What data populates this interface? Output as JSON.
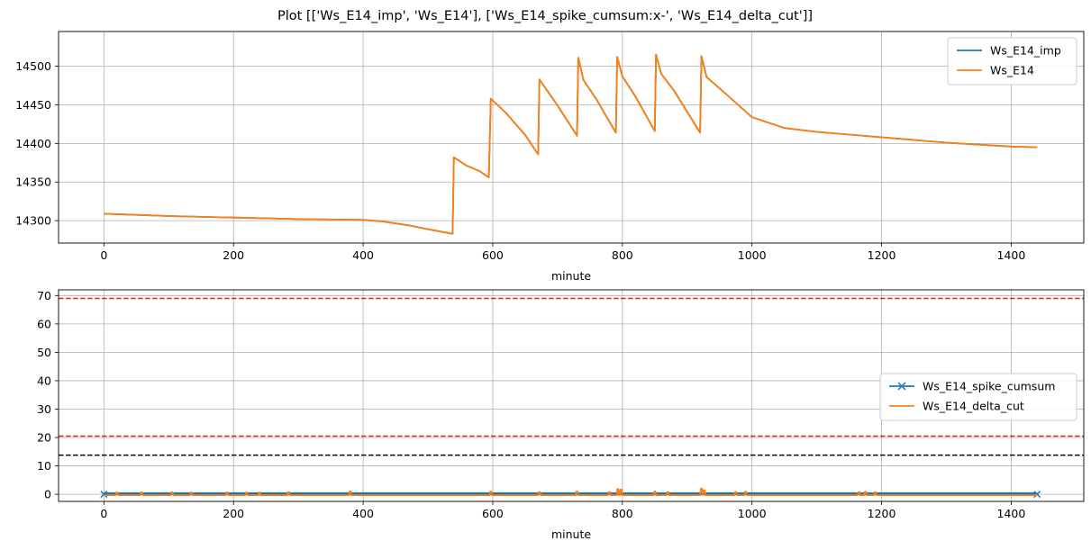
{
  "figure_title": "Plot [['Ws_E14_imp', 'Ws_E14'], ['Ws_E14_spike_cumsum:x-', 'Ws_E14_delta_cut']]",
  "chart_data": [
    {
      "type": "line",
      "title": "",
      "xlabel": "minute",
      "ylabel": "",
      "xlim": [
        -70,
        1512
      ],
      "ylim": [
        14271,
        14545
      ],
      "xticks": [
        0,
        200,
        400,
        600,
        800,
        1000,
        1200,
        1400
      ],
      "yticks": [
        14300,
        14350,
        14400,
        14450,
        14500
      ],
      "grid": true,
      "legend_position": "top-right",
      "series": [
        {
          "name": "Ws_E14_imp",
          "color": "#1f77b4",
          "points": [
            [
              0,
              14309
            ],
            [
              100,
              14306
            ],
            [
              200,
              14304
            ],
            [
              300,
              14302
            ],
            [
              400,
              14301
            ],
            [
              430,
              14299
            ],
            [
              470,
              14294
            ],
            [
              500,
              14289
            ],
            [
              538,
              14283
            ],
            [
              540,
              14382
            ],
            [
              560,
              14371
            ],
            [
              580,
              14364
            ],
            [
              594,
              14356
            ],
            [
              597,
              14458
            ],
            [
              620,
              14440
            ],
            [
              650,
              14411
            ],
            [
              670,
              14386
            ],
            [
              672,
              14483
            ],
            [
              700,
              14449
            ],
            [
              730,
              14410
            ],
            [
              732,
              14511
            ],
            [
              740,
              14482
            ],
            [
              760,
              14457
            ],
            [
              790,
              14414
            ],
            [
              792,
              14512
            ],
            [
              800,
              14487
            ],
            [
              820,
              14461
            ],
            [
              850,
              14416
            ],
            [
              852,
              14515
            ],
            [
              860,
              14490
            ],
            [
              880,
              14468
            ],
            [
              920,
              14414
            ],
            [
              922,
              14513
            ],
            [
              930,
              14486
            ],
            [
              960,
              14464
            ],
            [
              1000,
              14434
            ],
            [
              1050,
              14420
            ],
            [
              1100,
              14415
            ],
            [
              1200,
              14408
            ],
            [
              1300,
              14401
            ],
            [
              1400,
              14396
            ],
            [
              1440,
              14395
            ]
          ]
        },
        {
          "name": "Ws_E14",
          "color": "#ff7f0e",
          "points": [
            [
              0,
              14309
            ],
            [
              100,
              14306
            ],
            [
              200,
              14304
            ],
            [
              300,
              14302
            ],
            [
              400,
              14301
            ],
            [
              430,
              14299
            ],
            [
              470,
              14294
            ],
            [
              500,
              14289
            ],
            [
              538,
              14283
            ],
            [
              540,
              14382
            ],
            [
              560,
              14371
            ],
            [
              580,
              14364
            ],
            [
              594,
              14356
            ],
            [
              597,
              14458
            ],
            [
              620,
              14440
            ],
            [
              650,
              14411
            ],
            [
              670,
              14386
            ],
            [
              672,
              14483
            ],
            [
              700,
              14449
            ],
            [
              730,
              14410
            ],
            [
              732,
              14511
            ],
            [
              740,
              14482
            ],
            [
              760,
              14457
            ],
            [
              790,
              14414
            ],
            [
              792,
              14512
            ],
            [
              800,
              14487
            ],
            [
              820,
              14461
            ],
            [
              850,
              14416
            ],
            [
              852,
              14515
            ],
            [
              860,
              14490
            ],
            [
              880,
              14468
            ],
            [
              920,
              14414
            ],
            [
              922,
              14513
            ],
            [
              930,
              14486
            ],
            [
              960,
              14464
            ],
            [
              1000,
              14434
            ],
            [
              1050,
              14420
            ],
            [
              1100,
              14415
            ],
            [
              1200,
              14408
            ],
            [
              1300,
              14401
            ],
            [
              1400,
              14396
            ],
            [
              1440,
              14395
            ]
          ]
        }
      ]
    },
    {
      "type": "line",
      "title": "",
      "xlabel": "minute",
      "ylabel": "",
      "xlim": [
        -70,
        1512
      ],
      "ylim": [
        -2.5,
        72
      ],
      "xticks": [
        0,
        200,
        400,
        600,
        800,
        1000,
        1200,
        1400
      ],
      "yticks": [
        0,
        10,
        20,
        30,
        40,
        50,
        60,
        70
      ],
      "grid": true,
      "legend_position": "center-right",
      "hlines": [
        {
          "y": 69,
          "color": "#d62728",
          "style": "dashed"
        },
        {
          "y": 20.5,
          "color": "#d62728",
          "style": "dashed"
        },
        {
          "y": 13.8,
          "color": "#000000",
          "style": "dashed"
        }
      ],
      "series": [
        {
          "name": "Ws_E14_spike_cumsum",
          "color": "#1f77b4",
          "marker": "x",
          "x": [
            0,
            1440
          ],
          "values": [
            0,
            0
          ],
          "marker_density": "every minute",
          "band": [
            -0.3,
            0.7
          ]
        },
        {
          "name": "Ws_E14_delta_cut",
          "color": "#ff7f0e",
          "baseline": -0.3,
          "bumps": [
            [
              20,
              0.6
            ],
            [
              58,
              0.6
            ],
            [
              105,
              0.7
            ],
            [
              135,
              0.6
            ],
            [
              190,
              0.7
            ],
            [
              220,
              0.6
            ],
            [
              240,
              0.6
            ],
            [
              285,
              0.7
            ],
            [
              380,
              1.0
            ],
            [
              597,
              0.9
            ],
            [
              672,
              0.8
            ],
            [
              730,
              1.0
            ],
            [
              780,
              0.8
            ],
            [
              793,
              1.8
            ],
            [
              798,
              1.7
            ],
            [
              850,
              1.0
            ],
            [
              870,
              0.8
            ],
            [
              922,
              2.0
            ],
            [
              926,
              1.4
            ],
            [
              975,
              0.8
            ],
            [
              990,
              0.9
            ],
            [
              1165,
              0.8
            ],
            [
              1175,
              0.9
            ],
            [
              1190,
              0.7
            ]
          ]
        }
      ]
    }
  ]
}
